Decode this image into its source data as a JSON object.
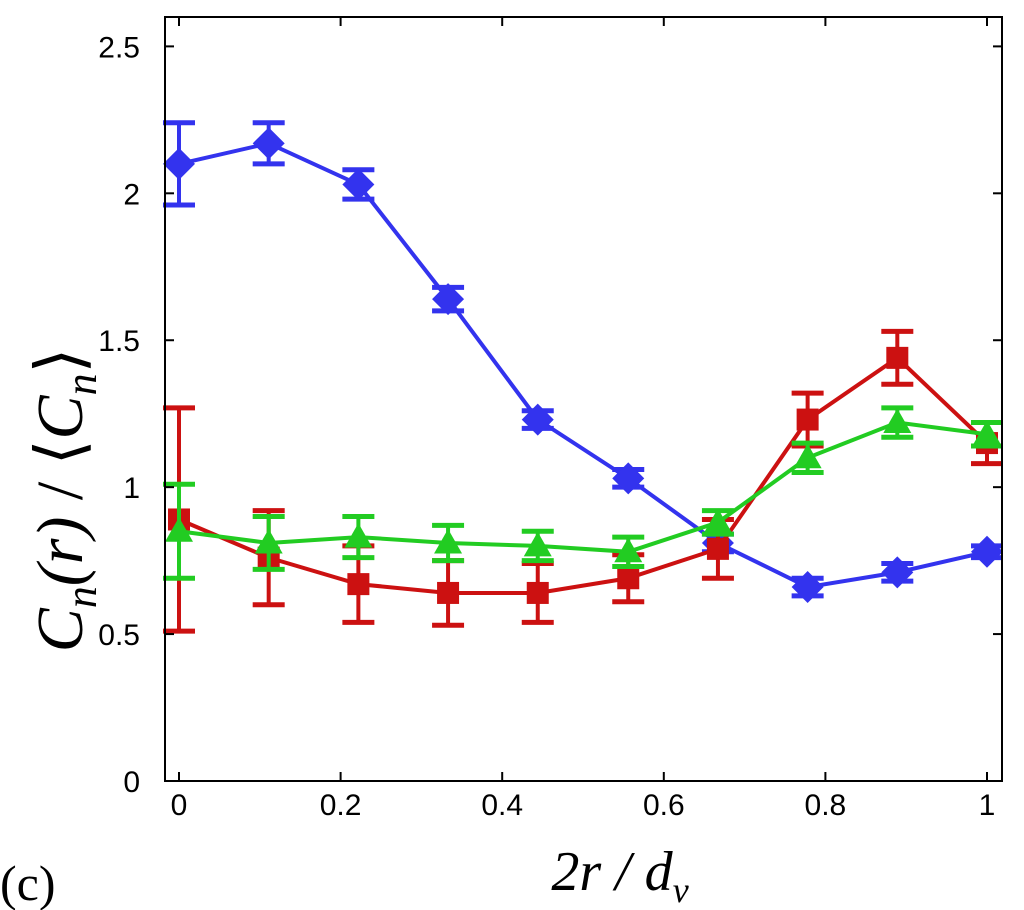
{
  "chart_data": {
    "type": "line",
    "panel_label": "(c)",
    "xlabel": "2r / d",
    "xlabel_subscript": "v",
    "ylabel_parts": {
      "C1": "C",
      "sub1": "n",
      "r": "(r)",
      "slash": " / ",
      "lang": "⟨",
      "C2": "C",
      "sub2": "n",
      "rang": "⟩"
    },
    "xlim": [
      0,
      1
    ],
    "ylim": [
      0,
      2.6
    ],
    "xticks": [
      0,
      0.2,
      0.4,
      0.6,
      0.8,
      1
    ],
    "xtick_labels": [
      "0",
      "0.2",
      "0.4",
      "0.6",
      "0.8",
      "1"
    ],
    "yticks": [
      0,
      0.5,
      1,
      1.5,
      2,
      2.5
    ],
    "ytick_labels": [
      "0",
      "0.5",
      "1",
      "1.5",
      "2",
      "2.5"
    ],
    "grid": false,
    "x": [
      0,
      0.111,
      0.222,
      0.333,
      0.444,
      0.556,
      0.667,
      0.778,
      0.889,
      1.0
    ],
    "series": [
      {
        "name": "blue-diamond",
        "color": "#3333ee",
        "marker": "diamond",
        "values": [
          2.1,
          2.17,
          2.03,
          1.64,
          1.23,
          1.03,
          0.81,
          0.66,
          0.71,
          0.78
        ],
        "errors": [
          0.14,
          0.07,
          0.05,
          0.04,
          0.03,
          0.03,
          0.03,
          0.03,
          0.03,
          0.02
        ]
      },
      {
        "name": "red-square",
        "color": "#cc1111",
        "marker": "square",
        "values": [
          0.89,
          0.76,
          0.67,
          0.64,
          0.64,
          0.69,
          0.79,
          1.23,
          1.44,
          1.15
        ],
        "errors": [
          0.38,
          0.16,
          0.13,
          0.11,
          0.1,
          0.08,
          0.1,
          0.09,
          0.09,
          0.07
        ]
      },
      {
        "name": "green-triangle",
        "color": "#22cc22",
        "marker": "triangle",
        "values": [
          0.85,
          0.81,
          0.83,
          0.81,
          0.8,
          0.78,
          0.88,
          1.1,
          1.22,
          1.18
        ],
        "errors": [
          0.16,
          0.09,
          0.07,
          0.06,
          0.05,
          0.05,
          0.04,
          0.05,
          0.05,
          0.04
        ]
      }
    ]
  }
}
